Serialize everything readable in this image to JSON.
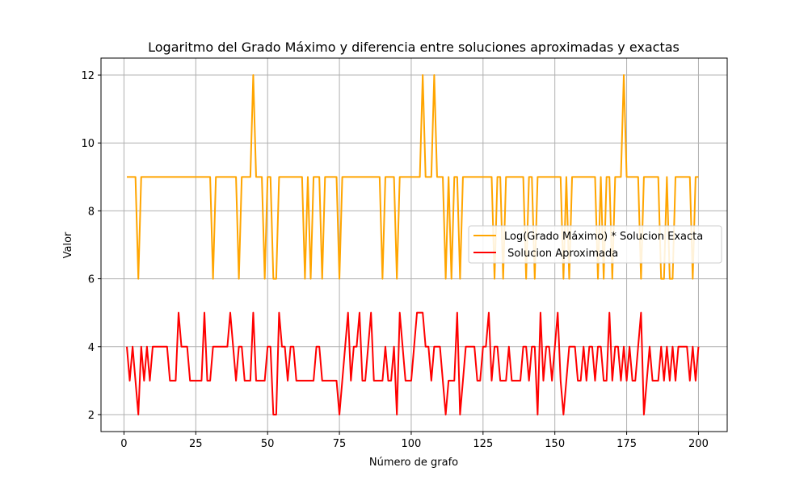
{
  "chart_data": {
    "type": "line",
    "title": "Logaritmo del Grado Máximo y diferencia entre soluciones aproximadas y exactas",
    "xlabel": "Número de grafo",
    "ylabel": "Valor",
    "xlim": [
      -8,
      210
    ],
    "ylim": [
      1.5,
      12.5
    ],
    "xticks": [
      0,
      25,
      50,
      75,
      100,
      125,
      150,
      175,
      200
    ],
    "yticks": [
      2,
      4,
      6,
      8,
      10,
      12
    ],
    "grid": true,
    "legend_position": "center-right",
    "x": [
      1,
      2,
      3,
      4,
      5,
      6,
      7,
      8,
      9,
      10,
      11,
      12,
      13,
      14,
      15,
      16,
      17,
      18,
      19,
      20,
      21,
      22,
      23,
      24,
      25,
      26,
      27,
      28,
      29,
      30,
      31,
      32,
      33,
      34,
      35,
      36,
      37,
      38,
      39,
      40,
      41,
      42,
      43,
      44,
      45,
      46,
      47,
      48,
      49,
      50,
      51,
      52,
      53,
      54,
      55,
      56,
      57,
      58,
      59,
      60,
      61,
      62,
      63,
      64,
      65,
      66,
      67,
      68,
      69,
      70,
      71,
      72,
      73,
      74,
      75,
      76,
      77,
      78,
      79,
      80,
      81,
      82,
      83,
      84,
      85,
      86,
      87,
      88,
      89,
      90,
      91,
      92,
      93,
      94,
      95,
      96,
      97,
      98,
      99,
      100,
      101,
      102,
      103,
      104,
      105,
      106,
      107,
      108,
      109,
      110,
      111,
      112,
      113,
      114,
      115,
      116,
      117,
      118,
      119,
      120,
      121,
      122,
      123,
      124,
      125,
      126,
      127,
      128,
      129,
      130,
      131,
      132,
      133,
      134,
      135,
      136,
      137,
      138,
      139,
      140,
      141,
      142,
      143,
      144,
      145,
      146,
      147,
      148,
      149,
      150,
      151,
      152,
      153,
      154,
      155,
      156,
      157,
      158,
      159,
      160,
      161,
      162,
      163,
      164,
      165,
      166,
      167,
      168,
      169,
      170,
      171,
      172,
      173,
      174,
      175,
      176,
      177,
      178,
      179,
      180,
      181,
      182,
      183,
      184,
      185,
      186,
      187,
      188,
      189,
      190,
      191,
      192,
      193,
      194,
      195,
      196,
      197,
      198,
      199,
      200
    ],
    "series": [
      {
        "name": "Log(Grado Máximo) * Solucion Exacta",
        "color": "#ffa500",
        "values": [
          9,
          9,
          9,
          9,
          6,
          9,
          9,
          9,
          9,
          9,
          9,
          9,
          9,
          9,
          9,
          9,
          9,
          9,
          9,
          9,
          9,
          9,
          9,
          9,
          9,
          9,
          9,
          9,
          9,
          9,
          6,
          9,
          9,
          9,
          9,
          9,
          9,
          9,
          9,
          6,
          9,
          9,
          9,
          9,
          12,
          9,
          9,
          9,
          6,
          9,
          9,
          6,
          6,
          9,
          9,
          9,
          9,
          9,
          9,
          9,
          9,
          9,
          6,
          9,
          6,
          9,
          9,
          9,
          6,
          9,
          9,
          9,
          9,
          9,
          6,
          9,
          9,
          9,
          9,
          9,
          9,
          9,
          9,
          9,
          9,
          9,
          9,
          9,
          9,
          6,
          9,
          9,
          9,
          9,
          6,
          9,
          9,
          9,
          9,
          9,
          9,
          9,
          9,
          12,
          9,
          9,
          9,
          12,
          9,
          9,
          9,
          6,
          9,
          6,
          9,
          9,
          6,
          9,
          9,
          9,
          9,
          9,
          9,
          9,
          9,
          9,
          9,
          9,
          6,
          9,
          9,
          6,
          9,
          9,
          9,
          9,
          9,
          9,
          9,
          6,
          9,
          9,
          6,
          9,
          9,
          9,
          9,
          9,
          9,
          9,
          9,
          9,
          6,
          9,
          6,
          9,
          9,
          9,
          9,
          9,
          9,
          9,
          9,
          9,
          6,
          9,
          6,
          9,
          9,
          6,
          9,
          9,
          9,
          12,
          9,
          9,
          9,
          9,
          9,
          6,
          9,
          9,
          9,
          9,
          9,
          9,
          6,
          6,
          9,
          6,
          6,
          9,
          9,
          9,
          9,
          9,
          9,
          6,
          9,
          9
        ]
      },
      {
        "name": " Solucion Aproximada",
        "color": "#ff0000",
        "values": [
          4,
          3,
          4,
          3,
          2,
          4,
          3,
          4,
          3,
          4,
          4,
          4,
          4,
          4,
          4,
          3,
          3,
          3,
          5,
          4,
          4,
          4,
          3,
          3,
          3,
          3,
          3,
          5,
          3,
          3,
          4,
          4,
          4,
          4,
          4,
          4,
          5,
          4,
          3,
          4,
          4,
          3,
          3,
          3,
          5,
          3,
          3,
          3,
          3,
          4,
          4,
          2,
          2,
          5,
          4,
          4,
          3,
          4,
          4,
          3,
          3,
          3,
          3,
          3,
          3,
          3,
          4,
          4,
          3,
          3,
          3,
          3,
          3,
          3,
          2,
          3,
          4,
          5,
          3,
          4,
          4,
          5,
          3,
          3,
          4,
          5,
          3,
          3,
          3,
          3,
          4,
          3,
          3,
          4,
          2,
          5,
          4,
          3,
          3,
          3,
          4,
          5,
          5,
          5,
          4,
          4,
          3,
          4,
          4,
          4,
          3,
          2,
          3,
          3,
          3,
          5,
          2,
          3,
          4,
          4,
          4,
          4,
          3,
          3,
          4,
          4,
          5,
          3,
          4,
          4,
          3,
          3,
          3,
          4,
          3,
          3,
          3,
          3,
          4,
          4,
          3,
          4,
          4,
          2,
          5,
          3,
          4,
          4,
          3,
          4,
          5,
          3,
          2,
          3,
          4,
          4,
          4,
          3,
          3,
          4,
          3,
          4,
          4,
          3,
          4,
          4,
          3,
          3,
          5,
          3,
          4,
          4,
          3,
          4,
          3,
          4,
          3,
          3,
          4,
          5,
          2,
          3,
          4,
          3,
          3,
          3,
          4,
          3,
          4,
          3,
          4,
          3,
          4,
          4,
          4,
          4,
          3,
          4,
          3,
          4
        ]
      }
    ]
  }
}
